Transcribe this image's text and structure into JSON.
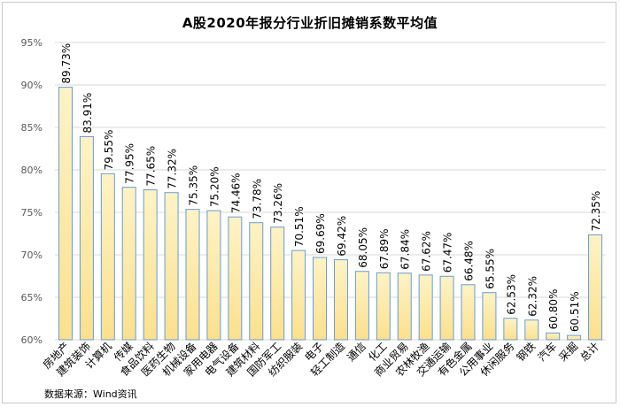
{
  "title": "A股2020年报分行业折旧摊销系数平均值",
  "source": "数据来源：Wind资讯",
  "colors": {
    "bar_top": "#fef3c7",
    "bar_bottom": "#fbe08f",
    "bar_border": "#6a9bd1",
    "grid": "#d9d9d9"
  },
  "chart_data": {
    "type": "bar",
    "title": "A股2020年报分行业折旧摊销系数平均值",
    "categories": [
      "房地产",
      "建筑装饰",
      "计算机",
      "传媒",
      "食品饮料",
      "医药生物",
      "机械设备",
      "家用电器",
      "电气设备",
      "建筑材料",
      "国防军工",
      "纺织服装",
      "电子",
      "轻工制造",
      "通信",
      "化工",
      "商业贸易",
      "农林牧渔",
      "交通运输",
      "有色金属",
      "公用事业",
      "休闲服务",
      "钢铁",
      "汽车",
      "采掘",
      "总计"
    ],
    "values": [
      89.73,
      83.91,
      79.55,
      77.95,
      77.65,
      77.32,
      75.35,
      75.2,
      74.46,
      73.78,
      73.26,
      70.51,
      69.69,
      69.42,
      68.05,
      67.89,
      67.84,
      67.62,
      67.47,
      66.48,
      65.55,
      62.53,
      62.32,
      60.8,
      60.51,
      72.35
    ],
    "data_labels": [
      "89.73%",
      "83.91%",
      "79.55%",
      "77.95%",
      "77.65%",
      "77.32%",
      "75.35%",
      "75.20%",
      "74.46%",
      "73.78%",
      "73.26%",
      "70.51%",
      "69.69%",
      "69.42%",
      "68.05%",
      "67.89%",
      "67.84%",
      "67.62%",
      "67.47%",
      "66.48%",
      "65.55%",
      "62.53%",
      "62.32%",
      "60.80%",
      "60.51%",
      "72.35%"
    ],
    "yticks": [
      "60%",
      "65%",
      "70%",
      "75%",
      "80%",
      "85%",
      "90%",
      "95%"
    ],
    "ylim": [
      60,
      95
    ],
    "grid": true,
    "legend": "none"
  }
}
